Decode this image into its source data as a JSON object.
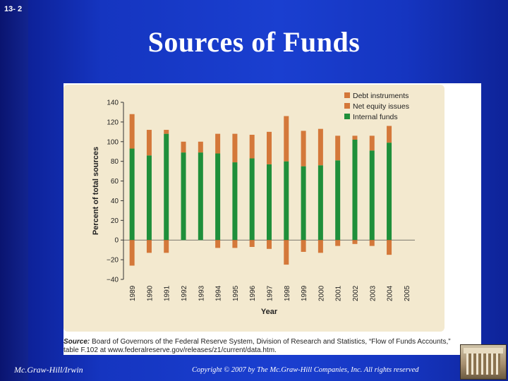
{
  "slide": {
    "number": "13- 2",
    "title": "Sources of Funds",
    "footer_left": "Mc.Graw-Hill/Irwin",
    "footer_right": "Copyright © 2007 by The Mc.Graw-Hill Companies, Inc. All rights reserved"
  },
  "source_note": {
    "label": "Source:",
    "text": " Board of Governors of the Federal Reserve System, Division of Research and Statistics, “Flow of Funds Accounts,” table F.102 at www.federalreserve.gov/releases/z1/current/data.htm."
  },
  "colors": {
    "debt": "#d4783a",
    "equity": "#d4783a",
    "internal": "#1f8f3a",
    "chart_bg": "#f3e9cf",
    "slide_bg": "#1a3fd0"
  },
  "chart_data": {
    "type": "bar",
    "stacked": true,
    "title": "",
    "xlabel": "Year",
    "ylabel": "Percent of total sources",
    "ylim": [
      -40,
      140
    ],
    "yticks": [
      140,
      120,
      100,
      80,
      60,
      40,
      20,
      0,
      -20,
      -40
    ],
    "ytick_labels": [
      "140",
      "120",
      "100",
      "80",
      "60",
      "40",
      "20",
      "0",
      "−20",
      "−40"
    ],
    "grid": false,
    "legend_position": "top-right",
    "categories": [
      "1989",
      "1990",
      "1991",
      "1992",
      "1993",
      "1994",
      "1995",
      "1996",
      "1997",
      "1998",
      "1999",
      "2000",
      "2001",
      "2002",
      "2003",
      "2004",
      "2005"
    ],
    "series": [
      {
        "name": "Debt instruments",
        "color_key": "debt",
        "values": [
          35,
          26,
          4,
          11,
          11,
          20,
          29,
          24,
          33,
          46,
          36,
          37,
          25,
          4,
          15,
          17,
          0
        ]
      },
      {
        "name": "Net equity issues",
        "color_key": "equity",
        "values": [
          -26,
          -13,
          -13,
          0,
          0,
          -8,
          -8,
          -7,
          -9,
          -25,
          -12,
          -13,
          -6,
          -4,
          -6,
          -15,
          0
        ]
      },
      {
        "name": "Internal funds",
        "color_key": "internal",
        "values": [
          93,
          86,
          108,
          89,
          89,
          88,
          79,
          83,
          77,
          80,
          75,
          76,
          81,
          102,
          91,
          99,
          0
        ]
      }
    ]
  }
}
